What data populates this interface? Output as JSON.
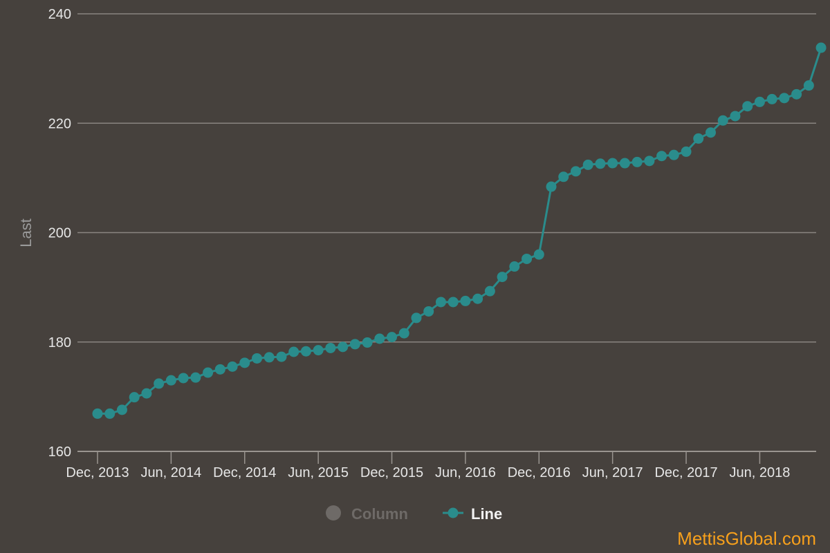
{
  "chart_data": {
    "type": "line",
    "title": "",
    "xlabel": "",
    "ylabel": "Last",
    "ylim": [
      160,
      240
    ],
    "yticks": [
      160,
      180,
      200,
      220,
      240
    ],
    "grid": true,
    "legend_placement": "bottom-center",
    "x_tick_labels": [
      "Dec, 2013",
      "Jun, 2014",
      "Dec, 2014",
      "Jun, 2015",
      "Dec, 2015",
      "Jun, 2016",
      "Dec, 2016",
      "Jun, 2017",
      "Dec, 2017",
      "Jun, 2018"
    ],
    "legend": [
      {
        "name": "Column",
        "visible": false,
        "color": "#6e6a67"
      },
      {
        "name": "Line",
        "visible": true,
        "color": "#2a8c8c"
      }
    ],
    "x": [
      "Dec, 2013",
      "Jan, 2014",
      "Feb, 2014",
      "Mar, 2014",
      "Apr, 2014",
      "May, 2014",
      "Jun, 2014",
      "Jul, 2014",
      "Aug, 2014",
      "Sep, 2014",
      "Oct, 2014",
      "Nov, 2014",
      "Dec, 2014",
      "Jan, 2015",
      "Feb, 2015",
      "Mar, 2015",
      "Apr, 2015",
      "May, 2015",
      "Jun, 2015",
      "Jul, 2015",
      "Aug, 2015",
      "Sep, 2015",
      "Oct, 2015",
      "Nov, 2015",
      "Dec, 2015",
      "Jan, 2016",
      "Feb, 2016",
      "Mar, 2016",
      "Apr, 2016",
      "May, 2016",
      "Jun, 2016",
      "Jul, 2016",
      "Aug, 2016",
      "Sep, 2016",
      "Oct, 2016",
      "Nov, 2016",
      "Dec, 2016",
      "Jan, 2017",
      "Feb, 2017",
      "Mar, 2017",
      "Apr, 2017",
      "May, 2017",
      "Jun, 2017",
      "Jul, 2017",
      "Aug, 2017",
      "Sep, 2017",
      "Oct, 2017",
      "Nov, 2017",
      "Dec, 2017",
      "Jan, 2018",
      "Feb, 2018",
      "Mar, 2018",
      "Apr, 2018",
      "May, 2018",
      "Jun, 2018",
      "Jul, 2018",
      "Aug, 2018",
      "Sep, 2018",
      "Oct, 2018",
      "Nov, 2018"
    ],
    "series": [
      {
        "name": "Line",
        "color": "#2a8c8c",
        "values": [
          166.9,
          166.9,
          167.6,
          169.9,
          170.6,
          172.4,
          173.0,
          173.4,
          173.5,
          174.4,
          175.0,
          175.5,
          176.2,
          177.0,
          177.2,
          177.3,
          178.2,
          178.3,
          178.5,
          178.9,
          179.1,
          179.6,
          179.9,
          180.6,
          180.9,
          181.6,
          184.4,
          185.6,
          187.3,
          187.3,
          187.5,
          187.9,
          189.3,
          191.9,
          193.8,
          195.2,
          196.0,
          208.4,
          210.2,
          211.2,
          212.4,
          212.6,
          212.7,
          212.7,
          212.9,
          213.1,
          214.0,
          214.2,
          214.8,
          217.2,
          218.3,
          220.5,
          221.3,
          223.1,
          223.9,
          224.4,
          224.6,
          225.3,
          226.9,
          233.8
        ]
      }
    ]
  },
  "watermark": "MettisGlobal.com"
}
